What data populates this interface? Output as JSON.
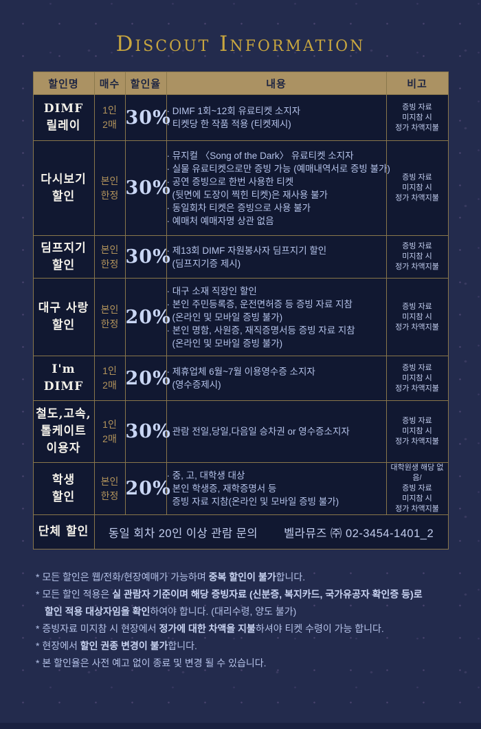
{
  "title": "Discout Information",
  "colors": {
    "background": "#232b4d",
    "cell_background": "#111831",
    "border_gold": "#8a774b",
    "header_background": "#ab9263",
    "header_text": "#1d2542",
    "title_gold": "#c8a63f",
    "qty_gold": "#b3945c",
    "body_text": "#b5c3ea",
    "name_white": "#f5f2ea"
  },
  "table": {
    "headers": [
      "할인명",
      "매수",
      "할인율",
      "내용",
      "비고"
    ],
    "rows": [
      {
        "name": [
          "DIMF",
          "릴레이"
        ],
        "qty": [
          "1인",
          "2매"
        ],
        "rate": "30%",
        "content": [
          {
            "bullet": true,
            "text": "DIMF 1회~12회 유료티켓 소지자"
          },
          {
            "bullet": true,
            "text": "티켓당 한 작품 적용 (티켓제시)"
          }
        ],
        "note": [
          "증빙 자료",
          "미지참 시",
          "정가 차액지불"
        ]
      },
      {
        "name": [
          "다시보기",
          "할인"
        ],
        "qty": [
          "본인",
          "한정"
        ],
        "rate": "30%",
        "content": [
          {
            "bullet": true,
            "text": "뮤지컬 〈Song of the Dark〉 유료티켓 소지자"
          },
          {
            "bullet": true,
            "text": "실물 유료티켓으로만 증빙 가능 (예매내역서로 증빙 불가)"
          },
          {
            "bullet": true,
            "text": "공연 증빙으로 한번 사용한 티켓"
          },
          {
            "bullet": false,
            "text": "(뒷면에 도장이 찍힌 티켓)은 재사용 불가"
          },
          {
            "bullet": true,
            "text": "동일회차 티켓은 증빙으로 사용 불가"
          },
          {
            "bullet": true,
            "text": "예매처 예매자명 상관 없음"
          }
        ],
        "note": [
          "증빙 자료",
          "미지참 시",
          "정가 차액지불"
        ]
      },
      {
        "name": [
          "딤프지기",
          "할인"
        ],
        "qty": [
          "본인",
          "한정"
        ],
        "rate": "30%",
        "content": [
          {
            "bullet": true,
            "text": "제13회 DIMF 자원봉사자 딤프지기 할인"
          },
          {
            "bullet": false,
            "text": "(딤프지기증 제시)"
          }
        ],
        "note": [
          "증빙 자료",
          "미지참 시",
          "정가 차액지불"
        ]
      },
      {
        "name": [
          "대구 사랑",
          "할인"
        ],
        "qty": [
          "본인",
          "한정"
        ],
        "rate": "20%",
        "content": [
          {
            "bullet": true,
            "text": "대구 소재 직장인 할인"
          },
          {
            "bullet": true,
            "text": "본인 주민등록증, 운전면허증 등 증빙 자료 지참"
          },
          {
            "bullet": false,
            "text": "(온라인 및 모바일 증빙 불가)"
          },
          {
            "bullet": true,
            "text": "본인 명함, 사원증, 재직증명서등 증빙 자료 지참"
          },
          {
            "bullet": false,
            "text": "(온라인 및 모바일 증빙 불가)"
          }
        ],
        "note": [
          "증빙 자료",
          "미지참 시",
          "정가 차액지불"
        ]
      },
      {
        "name": [
          "I'm",
          "DIMF"
        ],
        "qty": [
          "1인",
          "2매"
        ],
        "rate": "20%",
        "content": [
          {
            "bullet": true,
            "text": "제휴업체 6월~7월 이용영수증 소지자"
          },
          {
            "bullet": false,
            "text": "(영수증제시)"
          }
        ],
        "note": [
          "증빙 자료",
          "미지참 시",
          "정가 차액지불"
        ]
      },
      {
        "name": [
          "철도,고속,",
          "톨케이트",
          "이용자"
        ],
        "qty": [
          "1인",
          "2매"
        ],
        "rate": "30%",
        "content": [
          {
            "bullet": true,
            "text": "관람 전일,당일,다음일 승차권 or 영수증소지자"
          }
        ],
        "note": [
          "증빙 자료",
          "미지참 시",
          "정가 차액지불"
        ]
      },
      {
        "name": [
          "학생",
          "할인"
        ],
        "qty": [
          "본인",
          "한정"
        ],
        "rate": "20%",
        "content": [
          {
            "bullet": true,
            "text": "중, 고, 대학생 대상"
          },
          {
            "bullet": true,
            "text": "본인 학생증, 재학증명서 등"
          },
          {
            "bullet": false,
            "text": "증빙 자료 지참(온라인 및 모바일 증빙 불가)"
          }
        ],
        "note": [
          "대학원생 해당 없음/",
          "증빙 자료",
          "미지참 시",
          "정가 차액지불"
        ]
      }
    ],
    "group_row": {
      "name": "단체 할인",
      "inquiry": "동일 회차 20인 이상 관람 문의",
      "contact": "벨라뮤즈 ㈜ 02-3454-1401_2"
    }
  },
  "footnotes": [
    {
      "lines": [
        [
          {
            "t": "모든 할인은 웹/전화/현장예매가 가능하며 "
          },
          {
            "t": "중복 할인이 불가",
            "b": true
          },
          {
            "t": "합니다."
          }
        ]
      ]
    },
    {
      "lines": [
        [
          {
            "t": "모든 할인 적용은 "
          },
          {
            "t": "실 관람자 기준이며 해당 증빙자료 (신분증, 복지카드, 국가유공자 확인증 등)로",
            "b": true
          }
        ],
        [
          {
            "t": "할인 적용 대상자임을 확인",
            "b": true
          },
          {
            "t": "하여야 합니다. (대리수령, 양도 불가)"
          }
        ]
      ]
    },
    {
      "lines": [
        [
          {
            "t": "증빙자료 미지참 시 현장에서 "
          },
          {
            "t": "정가에 대한 차액을 지불",
            "b": true
          },
          {
            "t": "하셔야 티켓 수령이 가능 합니다."
          }
        ]
      ]
    },
    {
      "lines": [
        [
          {
            "t": "현장에서 "
          },
          {
            "t": "할인 권종 변경이 불가",
            "b": true
          },
          {
            "t": "합니다."
          }
        ]
      ]
    },
    {
      "lines": [
        [
          {
            "t": "본 할인율은 사전 예고 없이 종료 및 변경 될 수 있습니다."
          }
        ]
      ]
    }
  ]
}
